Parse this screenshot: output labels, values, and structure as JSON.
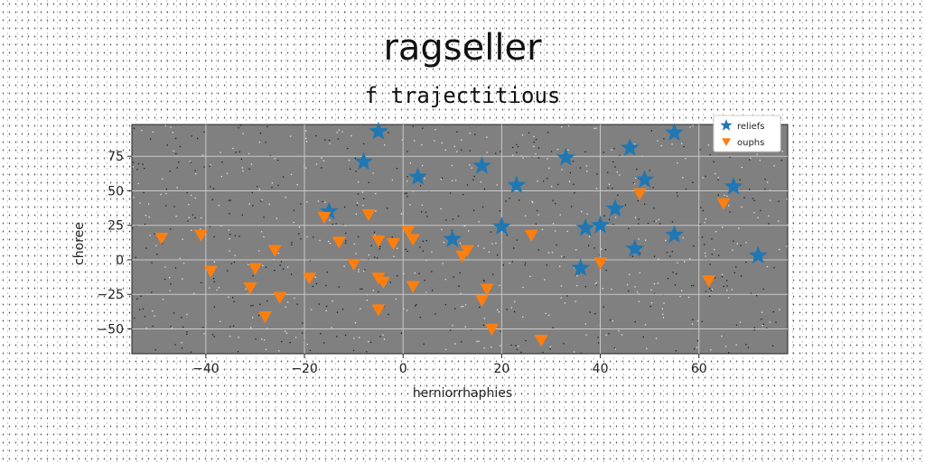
{
  "chart_data": {
    "type": "scatter",
    "title": "ragseller",
    "subtitle": "f trajectitious",
    "xlabel": "herniorrhaphies",
    "ylabel": "choree",
    "xlim": [
      -55,
      78
    ],
    "ylim": [
      -68,
      98
    ],
    "x_ticks": [
      -40,
      -20,
      0,
      20,
      40,
      60
    ],
    "y_ticks": [
      -50,
      -25,
      0,
      25,
      50,
      75
    ],
    "grid": true,
    "legend_position": "top-right",
    "colors": {
      "plot_bg": "#808080",
      "grid": "#c8c8c8"
    },
    "series": [
      {
        "name": "reliefs",
        "marker": "star",
        "color": "#1f77b4",
        "points": [
          {
            "x": -5,
            "y": 93
          },
          {
            "x": -8,
            "y": 71
          },
          {
            "x": 3,
            "y": 60
          },
          {
            "x": 16,
            "y": 68
          },
          {
            "x": 23,
            "y": 54
          },
          {
            "x": 33,
            "y": 74
          },
          {
            "x": 46,
            "y": 81
          },
          {
            "x": 55,
            "y": 92
          },
          {
            "x": 49,
            "y": 58
          },
          {
            "x": 67,
            "y": 53
          },
          {
            "x": 43,
            "y": 37
          },
          {
            "x": 40,
            "y": 25
          },
          {
            "x": 37,
            "y": 23
          },
          {
            "x": 20,
            "y": 24
          },
          {
            "x": 10,
            "y": 15
          },
          {
            "x": 55,
            "y": 18
          },
          {
            "x": 47,
            "y": 8
          },
          {
            "x": 72,
            "y": 3
          },
          {
            "x": 36,
            "y": -6
          },
          {
            "x": -15,
            "y": 35
          }
        ]
      },
      {
        "name": "ouphs",
        "marker": "triangle-down",
        "color": "#ff7f0e",
        "points": [
          {
            "x": -49,
            "y": 16
          },
          {
            "x": -41,
            "y": 18
          },
          {
            "x": -39,
            "y": -8
          },
          {
            "x": -31,
            "y": -20
          },
          {
            "x": -30,
            "y": -6
          },
          {
            "x": -25,
            "y": -27
          },
          {
            "x": -26,
            "y": 7
          },
          {
            "x": -28,
            "y": -41
          },
          {
            "x": -19,
            "y": -13
          },
          {
            "x": -16,
            "y": 31
          },
          {
            "x": -13,
            "y": 13
          },
          {
            "x": -10,
            "y": -3
          },
          {
            "x": -7,
            "y": 33
          },
          {
            "x": -5,
            "y": 14
          },
          {
            "x": -5,
            "y": -13
          },
          {
            "x": -4,
            "y": -16
          },
          {
            "x": -5,
            "y": -36
          },
          {
            "x": -2,
            "y": 12
          },
          {
            "x": 1,
            "y": 21
          },
          {
            "x": 2,
            "y": 15
          },
          {
            "x": 2,
            "y": -19
          },
          {
            "x": 12,
            "y": 3
          },
          {
            "x": 13,
            "y": 7
          },
          {
            "x": 17,
            "y": -21
          },
          {
            "x": 16,
            "y": -29
          },
          {
            "x": 18,
            "y": -50
          },
          {
            "x": 26,
            "y": 18
          },
          {
            "x": 28,
            "y": -58
          },
          {
            "x": 40,
            "y": -2
          },
          {
            "x": 48,
            "y": 48
          },
          {
            "x": 62,
            "y": -15
          },
          {
            "x": 65,
            "y": 41
          }
        ]
      }
    ]
  }
}
